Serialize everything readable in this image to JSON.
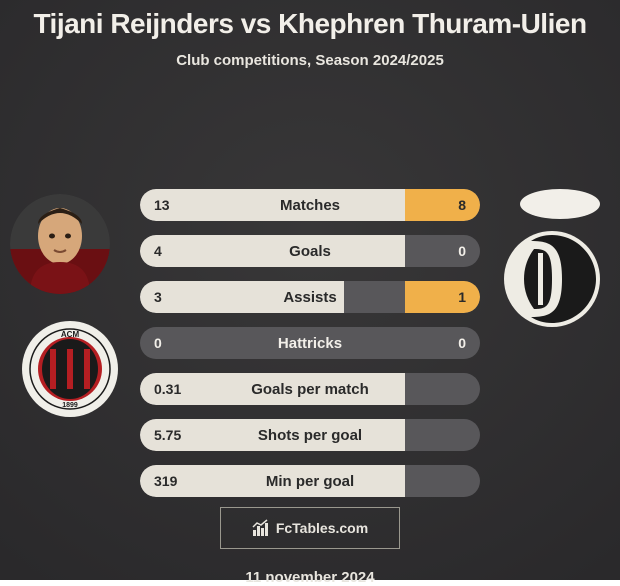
{
  "colors": {
    "bg_dark_top": "#2a292b",
    "bg_dark_bottom": "#383738",
    "title": "#f2efe9",
    "subtitle": "#e9e6df",
    "row_bg": "#58575a",
    "fill_left": "#e6e2d9",
    "fill_right": "#f0b04a",
    "text_on_fill": "#2a2a2a",
    "text_on_track": "#f2efe9",
    "brand_border": "#9a988e",
    "brand_text": "#e8e5de",
    "footer": "#e8e5de",
    "avatar_right_bg": "#f2efe9",
    "club_left_outer": "#f0efe9",
    "club_left_red": "#b51e22",
    "club_left_black": "#1a1a1a",
    "club_right_bg": "#eeece4",
    "club_right_fg": "#1a1a1a"
  },
  "title": "Tijani Reijnders vs Khephren Thuram-Ulien",
  "subtitle": "Club competitions, Season 2024/2025",
  "footer_date": "11 november 2024",
  "brand": "FcTables.com",
  "stats": [
    {
      "label": "Matches",
      "left_val": "13",
      "right_val": "8",
      "left_pct": 78,
      "right_pct": 22
    },
    {
      "label": "Goals",
      "left_val": "4",
      "right_val": "0",
      "left_pct": 78,
      "right_pct": 0
    },
    {
      "label": "Assists",
      "left_val": "3",
      "right_val": "1",
      "left_pct": 60,
      "right_pct": 22
    },
    {
      "label": "Hattricks",
      "left_val": "0",
      "right_val": "0",
      "left_pct": 0,
      "right_pct": 0
    },
    {
      "label": "Goals per match",
      "left_val": "0.31",
      "right_val": "",
      "left_pct": 78,
      "right_pct": 0
    },
    {
      "label": "Shots per goal",
      "left_val": "5.75",
      "right_val": "",
      "left_pct": 78,
      "right_pct": 0
    },
    {
      "label": "Min per goal",
      "left_val": "319",
      "right_val": "",
      "left_pct": 78,
      "right_pct": 0
    }
  ]
}
